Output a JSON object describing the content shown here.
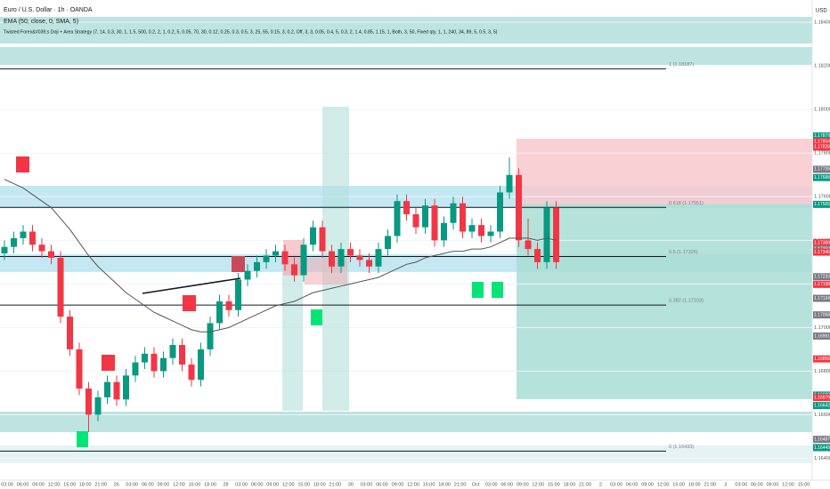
{
  "chart_data": {
    "type": "candlestick",
    "header": [
      "Euro / U.S. Dollar · 1h · OANDA",
      "EMA (50, close, 0, SMA, 5)",
      "Twisted Forex&#039;s Doji + Area Strategy (7, 14, 0.3, 30, 1, 1.5, 500, 0.2, 2, 1, 0.2, 5, 0.05, 70, 30, 0.12, 0.25, 0.3, 0.5, 3, 25, 55, 0.15, 3, 0.2, Off, 3, 3, 0.05, 0.4, 5, 0.3, 2, 1.4, 0.85, 1.15, 1, Both, 3, 50, Fixed qty, 1, 1, 240, 34, 89, 5, 0.5, 3, 5)"
    ],
    "currency": "USD",
    "ylim": [
      1.163,
      1.1847
    ],
    "yticks": [
      {
        "value": 1.164,
        "label": "1.16400"
      },
      {
        "value": 1.166,
        "label": "1.16600"
      },
      {
        "value": 1.168,
        "label": "1.16800"
      },
      {
        "value": 1.17,
        "label": "1.17000"
      },
      {
        "value": 1.172,
        "label": "1.17200"
      },
      {
        "value": 1.174,
        "label": "1.17400"
      },
      {
        "value": 1.176,
        "label": "1.17600"
      },
      {
        "value": 1.178,
        "label": "1.17800"
      },
      {
        "value": 1.18,
        "label": "1.18000"
      },
      {
        "value": 1.182,
        "label": "1.18200"
      },
      {
        "value": 1.184,
        "label": "1.18400"
      }
    ],
    "time_labels": [
      "03:00",
      "06:00",
      "09:00",
      "12:00",
      "15:00",
      "18:00",
      "21:00",
      "26",
      "03:00",
      "06:00",
      "09:00",
      "12:00",
      "15:00",
      "18:00",
      "28",
      "03:00",
      "06:00",
      "09:00",
      "12:00",
      "15:00",
      "18:00",
      "21:00",
      "30",
      "03:00",
      "06:00",
      "09:00",
      "12:00",
      "15:00",
      "18:00",
      "21:00",
      "Oct",
      "03:00",
      "06:00",
      "09:00",
      "12:00",
      "15:00",
      "18:00",
      "21:00",
      "2",
      "03:00",
      "06:00",
      "09:00",
      "12:00",
      "15:00",
      "18:00",
      "21:00",
      "3",
      "03:00",
      "06:00",
      "09:00",
      "12:00",
      "15:00"
    ],
    "up_color": "#089981",
    "down_color": "#f23645",
    "candles": [
      [
        1.1734,
        1.174,
        1.1731,
        1.1737
      ],
      [
        1.1737,
        1.1744,
        1.1734,
        1.1741
      ],
      [
        1.1741,
        1.1747,
        1.1738,
        1.1744
      ],
      [
        1.1744,
        1.1747,
        1.1735,
        1.1738
      ],
      [
        1.1738,
        1.1741,
        1.1732,
        1.1735
      ],
      [
        1.1735,
        1.1738,
        1.1729,
        1.1732
      ],
      [
        1.1732,
        1.1735,
        1.1702,
        1.1705
      ],
      [
        1.1705,
        1.1708,
        1.1687,
        1.169
      ],
      [
        1.169,
        1.1693,
        1.1669,
        1.1672
      ],
      [
        1.1672,
        1.1675,
        1.1652,
        1.166
      ],
      [
        1.166,
        1.1671,
        1.1657,
        1.1668
      ],
      [
        1.1668,
        1.1678,
        1.1665,
        1.1675
      ],
      [
        1.1675,
        1.1678,
        1.1664,
        1.1667
      ],
      [
        1.1667,
        1.1681,
        1.1664,
        1.1678
      ],
      [
        1.1678,
        1.1687,
        1.1675,
        1.1684
      ],
      [
        1.1684,
        1.1691,
        1.1681,
        1.1688
      ],
      [
        1.1688,
        1.1691,
        1.1677,
        1.168
      ],
      [
        1.168,
        1.1689,
        1.1677,
        1.1686
      ],
      [
        1.1686,
        1.1695,
        1.1683,
        1.1692
      ],
      [
        1.1692,
        1.1695,
        1.168,
        1.1683
      ],
      [
        1.1683,
        1.1686,
        1.1673,
        1.1676
      ],
      [
        1.1676,
        1.1693,
        1.1673,
        1.169
      ],
      [
        1.169,
        1.1705,
        1.1687,
        1.1702
      ],
      [
        1.1702,
        1.1715,
        1.1699,
        1.1712
      ],
      [
        1.1712,
        1.1715,
        1.1705,
        1.1708
      ],
      [
        1.1708,
        1.1725,
        1.1705,
        1.1722
      ],
      [
        1.1722,
        1.1729,
        1.1719,
        1.1726
      ],
      [
        1.1726,
        1.1733,
        1.1723,
        1.173
      ],
      [
        1.173,
        1.1736,
        1.1727,
        1.1733
      ],
      [
        1.1733,
        1.1738,
        1.173,
        1.1735
      ],
      [
        1.1735,
        1.1738,
        1.1726,
        1.1729
      ],
      [
        1.1729,
        1.1732,
        1.1721,
        1.1724
      ],
      [
        1.1724,
        1.1741,
        1.1721,
        1.1738
      ],
      [
        1.1738,
        1.1749,
        1.1735,
        1.1746
      ],
      [
        1.1746,
        1.1749,
        1.1732,
        1.1735
      ],
      [
        1.1735,
        1.1738,
        1.1725,
        1.1728
      ],
      [
        1.1728,
        1.1739,
        1.1725,
        1.1736
      ],
      [
        1.1736,
        1.1739,
        1.173,
        1.1733
      ],
      [
        1.1733,
        1.1736,
        1.1728,
        1.1731
      ],
      [
        1.1731,
        1.1734,
        1.1725,
        1.1728
      ],
      [
        1.1728,
        1.1739,
        1.1725,
        1.1736
      ],
      [
        1.1736,
        1.1745,
        1.1733,
        1.1742
      ],
      [
        1.1742,
        1.1761,
        1.1739,
        1.1758
      ],
      [
        1.1758,
        1.1761,
        1.1749,
        1.1752
      ],
      [
        1.1752,
        1.1755,
        1.1743,
        1.1746
      ],
      [
        1.1746,
        1.1759,
        1.1743,
        1.1756
      ],
      [
        1.1756,
        1.1759,
        1.1737,
        1.174
      ],
      [
        1.174,
        1.1751,
        1.1737,
        1.1748
      ],
      [
        1.1748,
        1.176,
        1.1745,
        1.1757
      ],
      [
        1.1757,
        1.176,
        1.1741,
        1.1744
      ],
      [
        1.1744,
        1.175,
        1.1741,
        1.1747
      ],
      [
        1.1747,
        1.175,
        1.1739,
        1.1742
      ],
      [
        1.1742,
        1.1747,
        1.1739,
        1.1744
      ],
      [
        1.1744,
        1.1765,
        1.1741,
        1.1762
      ],
      [
        1.1762,
        1.1778,
        1.1759,
        1.177
      ],
      [
        1.177,
        1.1773,
        1.1737,
        1.174
      ],
      [
        1.174,
        1.175,
        1.1733,
        1.1736
      ],
      [
        1.1736,
        1.1739,
        1.1727,
        1.173
      ],
      [
        1.173,
        1.1758,
        1.1727,
        1.1755
      ],
      [
        1.1755,
        1.1758,
        1.1727,
        1.173
      ]
    ],
    "ema": {
      "color": "#555555",
      "values": [
        1.1768,
        1.1766,
        1.1764,
        1.1761,
        1.1758,
        1.1755,
        1.175,
        1.1745,
        1.1739,
        1.1733,
        1.1728,
        1.1724,
        1.172,
        1.1716,
        1.1713,
        1.171,
        1.1707,
        1.1705,
        1.1703,
        1.1701,
        1.1699,
        1.1698,
        1.1698,
        1.1699,
        1.17,
        1.1702,
        1.1704,
        1.1706,
        1.1708,
        1.171,
        1.1711,
        1.1712,
        1.1714,
        1.1716,
        1.1717,
        1.1718,
        1.1719,
        1.172,
        1.1721,
        1.1722,
        1.1723,
        1.1725,
        1.1727,
        1.1729,
        1.173,
        1.1732,
        1.1733,
        1.1734,
        1.1735,
        1.1735,
        1.1736,
        1.1736,
        1.1737,
        1.1739,
        1.1741,
        1.1741,
        1.1741,
        1.174,
        1.1741,
        1.174
      ]
    },
    "zones": [
      {
        "top": 1.18425,
        "bottom": 1.18303,
        "color": "#b2dfdb"
      },
      {
        "top": 1.18287,
        "bottom": 1.18205,
        "color": "#b2dfdb"
      },
      {
        "top": 1.1765,
        "bottom": 1.17548,
        "color": "#b9e4f0"
      },
      {
        "top": 1.17336,
        "bottom": 1.17255,
        "color": "#b9e4f0"
      },
      {
        "top": 1.16614,
        "bottom": 1.1652,
        "color": "#b2dfdb"
      },
      {
        "top": 1.16459,
        "bottom": 1.16378,
        "color": "#e0f2f1"
      }
    ],
    "position": {
      "entry": 1.17565,
      "stop": 1.17866,
      "target": 1.16671,
      "stop_color": "#f8c8cc",
      "target_color": "#a8ddd3"
    },
    "fib_levels": [
      {
        "label": "1 (1.18187)",
        "value": 1.18187
      },
      {
        "label": "0.618 (1.17551)",
        "value": 1.17551
      },
      {
        "label": "0.5 (1.17326)",
        "value": 1.17326
      },
      {
        "label": "0.382 (1.17103)",
        "value": 1.17103
      },
      {
        "label": "0 (1.16433)",
        "value": 1.16433
      }
    ],
    "price_tags": [
      {
        "value": 1.17879,
        "color": "#089981"
      },
      {
        "value": 1.17854,
        "color": "#f23645"
      },
      {
        "value": 1.17828,
        "color": "#f23645"
      },
      {
        "value": 1.17726,
        "color": "#787b86"
      },
      {
        "value": 1.17688,
        "color": "#089981"
      },
      {
        "value": 1.17565,
        "color": "#089981"
      },
      {
        "value": 1.17389,
        "color": "#f23645"
      },
      {
        "value": 1.17359,
        "color": "#787b86"
      },
      {
        "value": 1.17346,
        "color": "#f23645"
      },
      {
        "value": 1.17233,
        "color": "#787b86"
      },
      {
        "value": 1.17198,
        "color": "#f23645"
      },
      {
        "value": 1.17134,
        "color": "#787b86"
      },
      {
        "value": 1.17058,
        "color": "#787b86"
      },
      {
        "value": 1.16961,
        "color": "#787b86"
      },
      {
        "value": 1.16856,
        "color": "#f23645"
      },
      {
        "value": {
          "value": 1.1669,
          "label": "1.16690"
        },
        "color": "#089981"
      },
      {
        "value": 1.16679,
        "color": "#f23645"
      },
      {
        "value": 1.16642,
        "color": "#089981"
      },
      {
        "value": 1.16487,
        "color": "#787b86"
      },
      {
        "value": 1.16449,
        "color": "#089981"
      }
    ]
  }
}
